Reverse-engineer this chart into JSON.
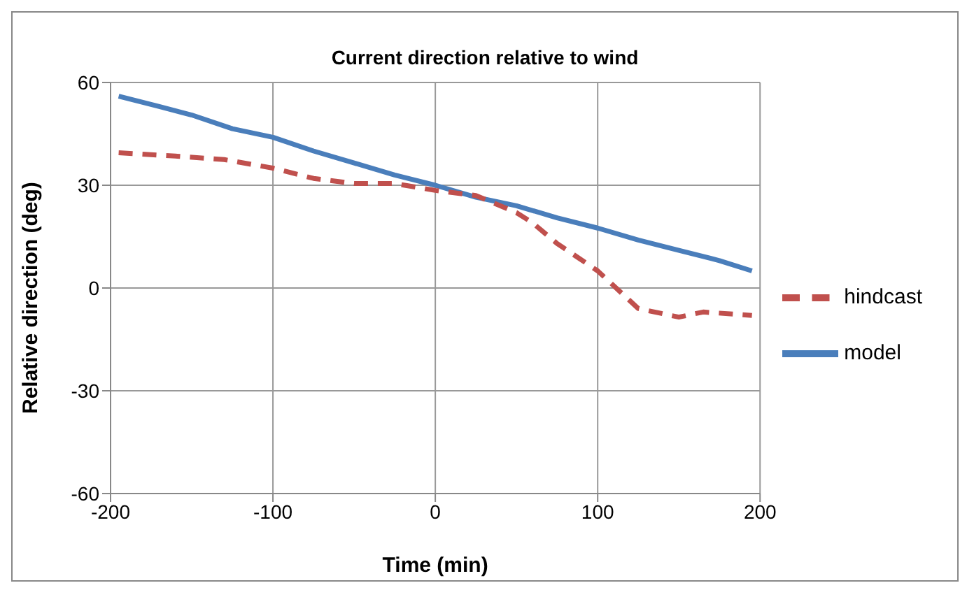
{
  "chart_data": {
    "type": "line",
    "title": "Current direction relative to wind",
    "xlabel": "Time (min)",
    "ylabel": "Relative direction (deg)",
    "xlim": [
      -200,
      200
    ],
    "xticks": [
      -200,
      -100,
      0,
      100,
      200
    ],
    "ylim": [
      -60,
      60
    ],
    "yticks": [
      -60,
      -30,
      0,
      30,
      60
    ],
    "grid": true,
    "legend": "right",
    "series": [
      {
        "name": "model",
        "color": "#4a7ebb",
        "line_style": "solid",
        "x": [
          -195,
          -170,
          -150,
          -125,
          -100,
          -75,
          -50,
          -25,
          0,
          25,
          50,
          75,
          100,
          125,
          150,
          175,
          195
        ],
        "values": [
          56,
          53,
          50.5,
          46.5,
          44,
          40,
          36.5,
          33,
          30,
          26.5,
          24,
          20.5,
          17.5,
          14,
          11,
          8,
          5
        ]
      },
      {
        "name": "hindcast",
        "color": "#c0504d",
        "line_style": "dashed",
        "x": [
          -195,
          -160,
          -130,
          -100,
          -75,
          -50,
          -25,
          0,
          25,
          50,
          60,
          75,
          100,
          125,
          150,
          165,
          195
        ],
        "values": [
          39.5,
          38.5,
          37.5,
          35,
          32,
          30.5,
          30.5,
          28.5,
          27,
          22,
          19,
          13,
          5,
          -6,
          -8.5,
          -7,
          -8
        ]
      }
    ]
  }
}
